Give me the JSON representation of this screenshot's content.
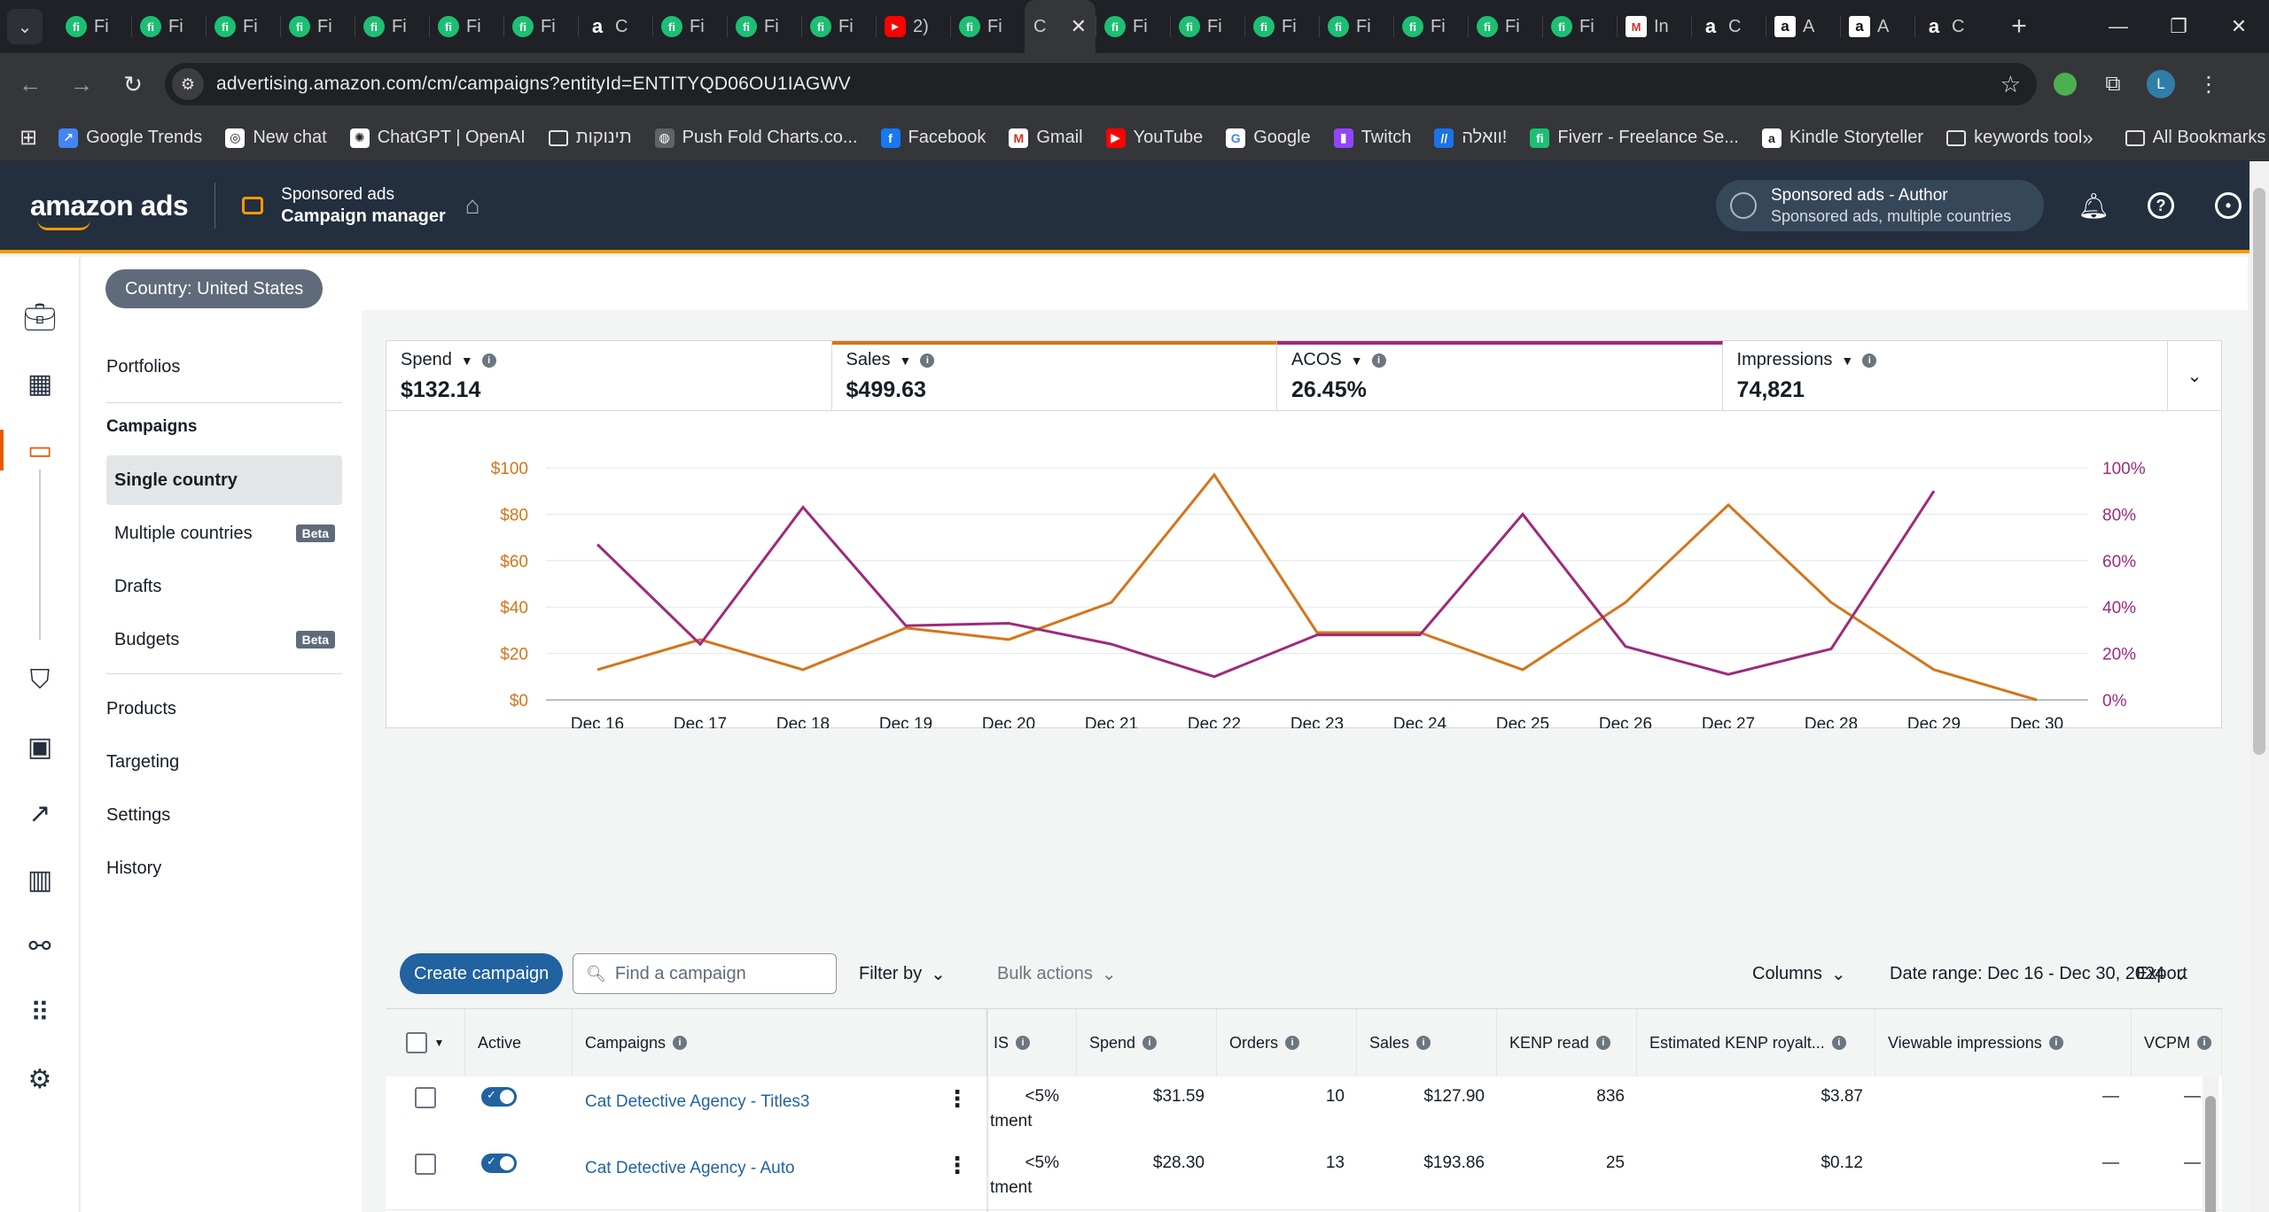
{
  "browser": {
    "tabs": [
      {
        "icon": "fi",
        "label": "Fi"
      },
      {
        "icon": "fi",
        "label": "Fi"
      },
      {
        "icon": "fi",
        "label": "Fi"
      },
      {
        "icon": "fi",
        "label": "Fi"
      },
      {
        "icon": "fi",
        "label": "Fi"
      },
      {
        "icon": "fi",
        "label": "Fi"
      },
      {
        "icon": "fi",
        "label": "Fi"
      },
      {
        "icon": "a",
        "label": "C"
      },
      {
        "icon": "fi",
        "label": "Fi"
      },
      {
        "icon": "fi",
        "label": "Fi"
      },
      {
        "icon": "fi",
        "label": "Fi"
      },
      {
        "icon": "yt",
        "label": "2)"
      },
      {
        "icon": "fi",
        "label": "Fi"
      },
      {
        "icon": "active",
        "label": "C"
      },
      {
        "icon": "fi",
        "label": "Fi"
      },
      {
        "icon": "fi",
        "label": "Fi"
      },
      {
        "icon": "fi",
        "label": "Fi"
      },
      {
        "icon": "fi",
        "label": "Fi"
      },
      {
        "icon": "fi",
        "label": "Fi"
      },
      {
        "icon": "fi",
        "label": "Fi"
      },
      {
        "icon": "fi",
        "label": "Fi"
      },
      {
        "icon": "gm",
        "label": "In"
      },
      {
        "icon": "a",
        "label": "C"
      },
      {
        "icon": "adark",
        "label": "A"
      },
      {
        "icon": "adark",
        "label": "A"
      },
      {
        "icon": "a",
        "label": "C"
      }
    ],
    "url": "advertising.amazon.com/cm/campaigns?entityId=ENTITYQD06OU1IAGWV",
    "profile_letter": "L",
    "bookmarks": [
      {
        "icon": "trends",
        "label": "Google Trends"
      },
      {
        "icon": "chat",
        "label": "New chat"
      },
      {
        "icon": "openai",
        "label": "ChatGPT | OpenAI"
      },
      {
        "icon": "folder",
        "label": "תינוקות"
      },
      {
        "icon": "globe",
        "label": "Push Fold Charts.co..."
      },
      {
        "icon": "facebook",
        "label": "Facebook"
      },
      {
        "icon": "gmail",
        "label": "Gmail"
      },
      {
        "icon": "youtube",
        "label": "YouTube"
      },
      {
        "icon": "google",
        "label": "Google"
      },
      {
        "icon": "twitch",
        "label": "Twitch"
      },
      {
        "icon": "walla",
        "label": "וואלה!"
      },
      {
        "icon": "fiverr",
        "label": "Fiverr - Freelance Se..."
      },
      {
        "icon": "kindle",
        "label": "Kindle Storyteller"
      },
      {
        "icon": "folder",
        "label": "keywords tool"
      }
    ],
    "all_bookmarks": "All Bookmarks"
  },
  "header": {
    "logo": "amazon ads",
    "app_sub": "Sponsored ads",
    "app_main": "Campaign manager",
    "account_title": "Sponsored ads - Author",
    "account_sub": "Sponsored ads, multiple countries"
  },
  "country_pill": "Country: United States",
  "subnav": {
    "portfolios": "Portfolios",
    "campaigns": "Campaigns",
    "single_country": "Single country",
    "multiple_countries": "Multiple countries",
    "drafts": "Drafts",
    "budgets": "Budgets",
    "beta": "Beta",
    "products": "Products",
    "targeting": "Targeting",
    "settings": "Settings",
    "history": "History"
  },
  "metrics": [
    {
      "label": "Spend",
      "value": "$132.14"
    },
    {
      "label": "Sales",
      "value": "$499.63"
    },
    {
      "label": "ACOS",
      "value": "26.45%"
    },
    {
      "label": "Impressions",
      "value": "74,821"
    }
  ],
  "chart_data": {
    "type": "line",
    "x": [
      "Dec 16",
      "Dec 17",
      "Dec 18",
      "Dec 19",
      "Dec 20",
      "Dec 21",
      "Dec 22",
      "Dec 23",
      "Dec 24",
      "Dec 25",
      "Dec 26",
      "Dec 27",
      "Dec 28",
      "Dec 29",
      "Dec 30"
    ],
    "series": [
      {
        "name": "Sales",
        "axis": "left",
        "color": "#d47519",
        "values": [
          13,
          26,
          13,
          31,
          26,
          42,
          97,
          29,
          29,
          13,
          42,
          84,
          42,
          13,
          0
        ]
      },
      {
        "name": "ACOS",
        "axis": "right",
        "color": "#9e2a7a",
        "values": [
          67,
          24,
          83,
          32,
          33,
          24,
          10,
          28,
          28,
          80,
          23,
          11,
          22,
          90,
          null
        ]
      }
    ],
    "y_left": {
      "ticks": [
        "$0",
        "$20",
        "$40",
        "$60",
        "$80",
        "$100"
      ],
      "range": [
        0,
        100
      ]
    },
    "y_right": {
      "ticks": [
        "0%",
        "20%",
        "40%",
        "60%",
        "80%",
        "100%"
      ],
      "range": [
        0,
        100
      ]
    },
    "grid": true
  },
  "toolbar": {
    "create": "Create campaign",
    "search_placeholder": "Find a campaign",
    "filter": "Filter by",
    "bulk": "Bulk actions",
    "columns": "Columns",
    "date_range": "Date range: Dec 16 - Dec 30, 2024",
    "export": "Export"
  },
  "table": {
    "headers": {
      "active": "Active",
      "campaigns": "Campaigns",
      "is": "IS",
      "spend": "Spend",
      "orders": "Orders",
      "sales": "Sales",
      "kenp": "KENP read",
      "royalties": "Estimated KENP royalt...",
      "viewable": "Viewable impressions",
      "vcpm": "VCPM"
    },
    "rows": [
      {
        "name": "Cat Detective Agency - Titles3",
        "is": "<5%",
        "is_sub": "tment",
        "spend": "$31.59",
        "orders": "10",
        "sales": "$127.90",
        "kenp": "836",
        "royalties": "$3.87",
        "viewable": "—",
        "vcpm": "—"
      },
      {
        "name": "Cat Detective Agency - Auto",
        "is": "<5%",
        "is_sub": "tment",
        "spend": "$28.30",
        "orders": "13",
        "sales": "$193.86",
        "kenp": "25",
        "royalties": "$0.12",
        "viewable": "—",
        "vcpm": "—"
      }
    ]
  }
}
